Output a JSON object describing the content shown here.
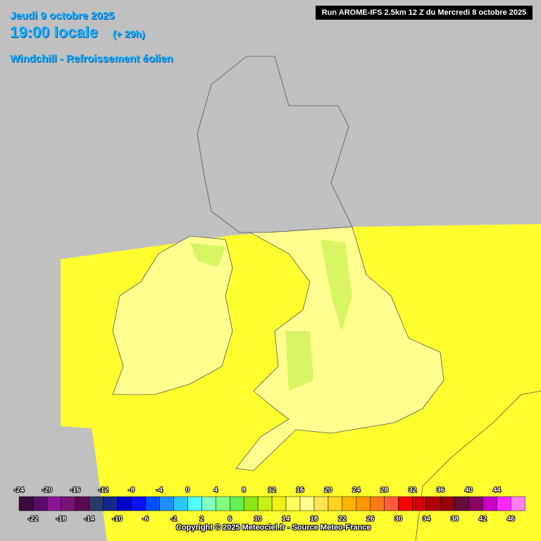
{
  "header": {
    "date": "Jeudi 9 octobre 2025",
    "time": "19:00 locale",
    "lead": "(+ 29h)",
    "parameter": "Windchill - Refroissement éolien",
    "run": "Run AROME-IFS 2.5km 12 Z du Mercredi 8 octobre 2025"
  },
  "legend": {
    "ticks": [
      -24,
      -22,
      -20,
      -18,
      -16,
      -14,
      -12,
      -10,
      -8,
      -6,
      -4,
      -2,
      0,
      2,
      4,
      6,
      8,
      10,
      12,
      14,
      16,
      18,
      20,
      22,
      24,
      26,
      28,
      30,
      32,
      34,
      36,
      38,
      40,
      42,
      44,
      46
    ],
    "colors": [
      "#3c0a3c",
      "#5a0a6a",
      "#8c1496",
      "#7a1478",
      "#5a0a50",
      "#2a3a6a",
      "#14288c",
      "#0000c8",
      "#0a14f0",
      "#0050ff",
      "#1e90ff",
      "#28c8ff",
      "#50ffff",
      "#80ffc0",
      "#80ff80",
      "#64f050",
      "#8ce614",
      "#c8f014",
      "#f0f014",
      "#ffff60",
      "#ffff90",
      "#ffe650",
      "#ffd21e",
      "#ffb400",
      "#ff9600",
      "#ff7814",
      "#ff5a3c",
      "#ff0000",
      "#d20000",
      "#b40000",
      "#960000",
      "#640a3c",
      "#8c0064",
      "#c800c8",
      "#ff28ff",
      "#ff80ff"
    ]
  },
  "footer": {
    "copyright": "Copyright © 2025 Meteociel.fr - Source Meteo-France"
  }
}
